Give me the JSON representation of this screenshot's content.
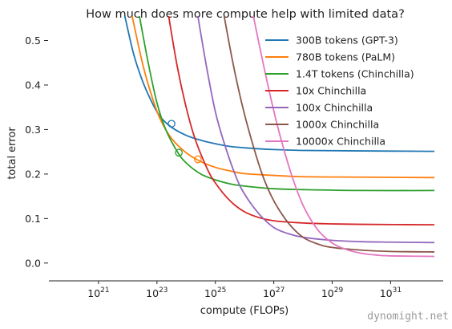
{
  "chart_data": {
    "type": "line",
    "title": "How much does more compute help with limited data?",
    "xlabel": "compute (FLOPs)",
    "ylabel": "total error",
    "x_scale": "log10",
    "xlim_log10": [
      19.3,
      32.8
    ],
    "ylim": [
      -0.04,
      0.555
    ],
    "x_ticks": [
      {
        "base": "10",
        "exp": "21"
      },
      {
        "base": "10",
        "exp": "23"
      },
      {
        "base": "10",
        "exp": "25"
      },
      {
        "base": "10",
        "exp": "27"
      },
      {
        "base": "10",
        "exp": "29"
      },
      {
        "base": "10",
        "exp": "31"
      }
    ],
    "x_tick_log10": [
      21,
      23,
      25,
      27,
      29,
      31
    ],
    "y_ticks": [
      "0.0",
      "0.1",
      "0.2",
      "0.3",
      "0.4",
      "0.5"
    ],
    "y_tick_values": [
      0.0,
      0.1,
      0.2,
      0.3,
      0.4,
      0.5
    ],
    "legend_position": "top-right",
    "grid": false,
    "series": [
      {
        "name": "300B tokens (GPT-3)",
        "color": "#1f77b4",
        "log10_x": [
          21.9,
          22.2,
          22.5,
          22.8,
          23.1,
          23.5,
          24.0,
          24.5,
          25.0,
          25.5,
          26.0,
          27.0,
          28.0,
          30.0,
          32.5
        ],
        "y": [
          0.555,
          0.47,
          0.41,
          0.365,
          0.33,
          0.305,
          0.287,
          0.276,
          0.268,
          0.262,
          0.259,
          0.255,
          0.253,
          0.252,
          0.251
        ],
        "marker": {
          "log10_x": 23.5,
          "y": 0.313
        }
      },
      {
        "name": "780B tokens (PaLM)",
        "color": "#ff7f0e",
        "log10_x": [
          22.15,
          22.5,
          22.8,
          23.1,
          23.5,
          24.0,
          24.5,
          25.0,
          25.5,
          26.0,
          27.0,
          28.0,
          30.0,
          32.5
        ],
        "y": [
          0.555,
          0.45,
          0.38,
          0.325,
          0.28,
          0.248,
          0.228,
          0.215,
          0.207,
          0.201,
          0.197,
          0.194,
          0.193,
          0.192
        ],
        "marker": {
          "log10_x": 24.4,
          "y": 0.233
        }
      },
      {
        "name": "1.4T tokens (Chinchilla)",
        "color": "#2ca02c",
        "log10_x": [
          22.4,
          22.7,
          23.0,
          23.3,
          23.7,
          24.0,
          24.5,
          25.0,
          25.5,
          26.0,
          27.0,
          28.0,
          30.0,
          32.5
        ],
        "y": [
          0.555,
          0.45,
          0.36,
          0.3,
          0.25,
          0.225,
          0.2,
          0.187,
          0.178,
          0.173,
          0.167,
          0.165,
          0.163,
          0.163
        ],
        "marker": {
          "log10_x": 23.75,
          "y": 0.248
        }
      },
      {
        "name": "10x Chinchilla",
        "color": "#d62728",
        "log10_x": [
          23.4,
          23.7,
          24.0,
          24.3,
          24.7,
          25.0,
          25.5,
          26.0,
          26.5,
          27.0,
          28.0,
          29.0,
          30.0,
          32.5
        ],
        "y": [
          0.555,
          0.44,
          0.35,
          0.28,
          0.215,
          0.18,
          0.14,
          0.115,
          0.102,
          0.095,
          0.09,
          0.088,
          0.087,
          0.086
        ],
        "marker": null
      },
      {
        "name": "100x Chinchilla",
        "color": "#9467bd",
        "log10_x": [
          24.4,
          24.7,
          25.0,
          25.3,
          25.7,
          26.0,
          26.5,
          27.0,
          27.5,
          28.0,
          29.0,
          30.0,
          31.0,
          32.5
        ],
        "y": [
          0.555,
          0.44,
          0.34,
          0.27,
          0.195,
          0.155,
          0.11,
          0.08,
          0.066,
          0.058,
          0.051,
          0.048,
          0.047,
          0.046
        ],
        "marker": null
      },
      {
        "name": "1000x Chinchilla",
        "color": "#8c564b",
        "log10_x": [
          25.3,
          25.6,
          25.9,
          26.2,
          26.6,
          27.0,
          27.5,
          28.0,
          28.5,
          29.0,
          30.0,
          31.0,
          32.5
        ],
        "y": [
          0.555,
          0.45,
          0.36,
          0.285,
          0.2,
          0.14,
          0.09,
          0.058,
          0.043,
          0.035,
          0.029,
          0.026,
          0.025
        ],
        "marker": null
      },
      {
        "name": "10000x Chinchilla",
        "color": "#e377c2",
        "log10_x": [
          26.3,
          26.6,
          26.9,
          27.2,
          27.6,
          28.0,
          28.5,
          29.0,
          29.5,
          30.0,
          30.5,
          31.0,
          32.5
        ],
        "y": [
          0.555,
          0.46,
          0.37,
          0.29,
          0.2,
          0.13,
          0.075,
          0.045,
          0.03,
          0.022,
          0.018,
          0.016,
          0.015
        ],
        "marker": null
      }
    ]
  },
  "watermark": "dynomight.net"
}
